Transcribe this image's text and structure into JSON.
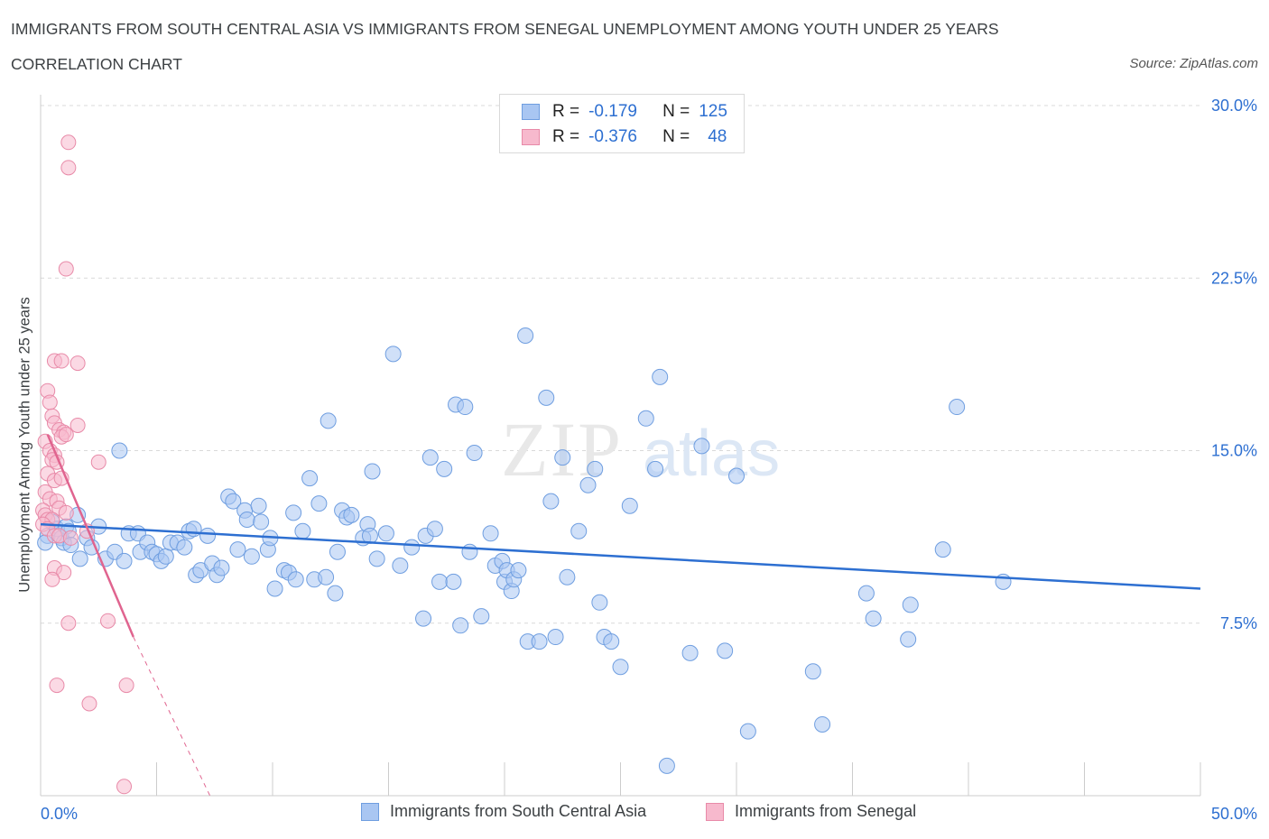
{
  "header": {
    "title": "IMMIGRANTS FROM SOUTH CENTRAL ASIA VS IMMIGRANTS FROM SENEGAL UNEMPLOYMENT AMONG YOUTH UNDER 25 YEARS",
    "subtitle": "CORRELATION CHART",
    "source": "Source: ZipAtlas.com"
  },
  "watermark": {
    "zip": "ZIP",
    "atlas": "atlas"
  },
  "legend": {
    "rows": [
      {
        "r_label": "R =",
        "r_value": "-0.179",
        "n_label": "N =",
        "n_value": "125",
        "color": "#a9c6f2",
        "border": "#6f9ee0"
      },
      {
        "r_label": "R =",
        "r_value": "-0.376",
        "n_label": "N =",
        "n_value": "48",
        "color": "#f7b9cd",
        "border": "#e88aa8"
      }
    ]
  },
  "colors": {
    "blue_fill": "#a9c6f2",
    "blue_stroke": "#6f9ee0",
    "blue_line": "#2d6fd1",
    "pink_fill": "#f7b9cd",
    "pink_stroke": "#e88aa8",
    "pink_line": "#e0648f",
    "axis_label": "#2d6fd1",
    "grid": "#d9d9d9"
  },
  "chart_data": {
    "type": "scatter",
    "title": "IMMIGRANTS FROM SOUTH CENTRAL ASIA VS IMMIGRANTS FROM SENEGAL UNEMPLOYMENT AMONG YOUTH UNDER 25 YEARS",
    "subtitle": "CORRELATION CHART",
    "xlabel": "",
    "ylabel": "Unemployment Among Youth under 25 years",
    "xlim": [
      0,
      50
    ],
    "ylim": [
      0,
      30
    ],
    "x_tick_labels": [
      "0.0%",
      "50.0%"
    ],
    "y_ticks": [
      7.5,
      15,
      22.5,
      30
    ],
    "y_tick_labels": [
      "7.5%",
      "15.0%",
      "22.5%",
      "30.0%"
    ],
    "grid": true,
    "legend_position": "bottom",
    "series": [
      {
        "name": "Immigrants from South Central Asia",
        "r": -0.179,
        "n": 125,
        "trend": {
          "x": [
            0,
            50
          ],
          "y": [
            11.8,
            9.0
          ]
        },
        "points": [
          [
            0.3,
            11.3
          ],
          [
            0.5,
            11.9
          ],
          [
            0.7,
            11.6
          ],
          [
            0.9,
            11.2
          ],
          [
            1.0,
            11.0
          ],
          [
            1.1,
            11.7
          ],
          [
            1.2,
            11.5
          ],
          [
            1.3,
            10.9
          ],
          [
            1.6,
            12.2
          ],
          [
            1.7,
            10.3
          ],
          [
            2.0,
            11.2
          ],
          [
            2.2,
            10.8
          ],
          [
            2.5,
            11.7
          ],
          [
            2.8,
            10.3
          ],
          [
            3.2,
            10.6
          ],
          [
            3.4,
            15.0
          ],
          [
            3.6,
            10.2
          ],
          [
            3.8,
            11.4
          ],
          [
            4.2,
            11.4
          ],
          [
            4.3,
            10.6
          ],
          [
            4.6,
            11.0
          ],
          [
            4.8,
            10.6
          ],
          [
            5.0,
            10.5
          ],
          [
            5.2,
            10.2
          ],
          [
            5.4,
            10.4
          ],
          [
            5.6,
            11.0
          ],
          [
            5.9,
            11.0
          ],
          [
            6.2,
            10.8
          ],
          [
            6.4,
            11.5
          ],
          [
            6.6,
            11.6
          ],
          [
            6.7,
            9.6
          ],
          [
            6.9,
            9.8
          ],
          [
            7.2,
            11.3
          ],
          [
            7.4,
            10.1
          ],
          [
            7.6,
            9.6
          ],
          [
            7.8,
            9.9
          ],
          [
            8.1,
            13.0
          ],
          [
            8.3,
            12.8
          ],
          [
            8.5,
            10.7
          ],
          [
            8.8,
            12.4
          ],
          [
            8.9,
            12.0
          ],
          [
            9.1,
            10.4
          ],
          [
            9.4,
            12.6
          ],
          [
            9.5,
            11.9
          ],
          [
            9.8,
            10.7
          ],
          [
            9.9,
            11.2
          ],
          [
            10.1,
            9.0
          ],
          [
            10.5,
            9.8
          ],
          [
            10.7,
            9.7
          ],
          [
            10.9,
            12.3
          ],
          [
            11.0,
            9.4
          ],
          [
            11.3,
            11.5
          ],
          [
            11.6,
            13.8
          ],
          [
            11.8,
            9.4
          ],
          [
            12.0,
            12.7
          ],
          [
            12.3,
            9.5
          ],
          [
            12.4,
            16.3
          ],
          [
            12.7,
            8.8
          ],
          [
            12.8,
            10.6
          ],
          [
            13.0,
            12.4
          ],
          [
            13.2,
            12.1
          ],
          [
            13.4,
            12.2
          ],
          [
            13.9,
            11.2
          ],
          [
            14.1,
            11.8
          ],
          [
            14.2,
            11.3
          ],
          [
            14.3,
            14.1
          ],
          [
            14.5,
            10.3
          ],
          [
            14.9,
            11.4
          ],
          [
            15.2,
            19.2
          ],
          [
            15.5,
            10.0
          ],
          [
            16.0,
            10.8
          ],
          [
            16.5,
            7.7
          ],
          [
            16.6,
            11.3
          ],
          [
            16.8,
            14.7
          ],
          [
            17.0,
            11.6
          ],
          [
            17.2,
            9.3
          ],
          [
            17.4,
            14.2
          ],
          [
            17.8,
            9.3
          ],
          [
            17.9,
            17.0
          ],
          [
            18.1,
            7.4
          ],
          [
            18.3,
            16.9
          ],
          [
            18.5,
            10.6
          ],
          [
            18.7,
            14.9
          ],
          [
            19.0,
            7.8
          ],
          [
            19.4,
            11.4
          ],
          [
            19.6,
            10.0
          ],
          [
            19.9,
            10.2
          ],
          [
            20.0,
            9.3
          ],
          [
            20.1,
            9.8
          ],
          [
            20.3,
            8.9
          ],
          [
            20.4,
            9.4
          ],
          [
            20.6,
            9.8
          ],
          [
            20.9,
            20.0
          ],
          [
            21.0,
            6.7
          ],
          [
            21.5,
            6.7
          ],
          [
            21.8,
            17.3
          ],
          [
            22.0,
            12.8
          ],
          [
            22.2,
            6.9
          ],
          [
            22.5,
            14.7
          ],
          [
            22.7,
            9.5
          ],
          [
            23.2,
            11.5
          ],
          [
            23.6,
            13.5
          ],
          [
            23.9,
            14.2
          ],
          [
            24.1,
            8.4
          ],
          [
            24.3,
            6.9
          ],
          [
            24.6,
            6.7
          ],
          [
            25.0,
            5.6
          ],
          [
            25.4,
            12.6
          ],
          [
            26.1,
            16.4
          ],
          [
            26.5,
            14.2
          ],
          [
            26.7,
            18.2
          ],
          [
            27.0,
            1.3
          ],
          [
            28.0,
            6.2
          ],
          [
            28.5,
            15.2
          ],
          [
            29.5,
            6.3
          ],
          [
            30.0,
            13.9
          ],
          [
            30.5,
            2.8
          ],
          [
            33.3,
            5.4
          ],
          [
            33.7,
            3.1
          ],
          [
            35.6,
            8.8
          ],
          [
            35.9,
            7.7
          ],
          [
            37.4,
            6.8
          ],
          [
            37.5,
            8.3
          ],
          [
            38.9,
            10.7
          ],
          [
            39.5,
            16.9
          ],
          [
            41.5,
            9.3
          ],
          [
            0.2,
            11.0
          ]
        ]
      },
      {
        "name": "Immigrants from Senegal",
        "r": -0.376,
        "n": 48,
        "trend": {
          "x": [
            0.3,
            4.0
          ],
          "y": [
            15.7,
            6.9
          ]
        },
        "trend_dashed": {
          "x": [
            4.0,
            7.3
          ],
          "y": [
            6.9,
            0
          ]
        },
        "points": [
          [
            1.2,
            28.4
          ],
          [
            1.2,
            27.3
          ],
          [
            1.1,
            22.9
          ],
          [
            0.6,
            18.9
          ],
          [
            0.9,
            18.9
          ],
          [
            1.6,
            18.8
          ],
          [
            0.3,
            17.6
          ],
          [
            0.4,
            17.1
          ],
          [
            0.5,
            16.5
          ],
          [
            0.6,
            16.2
          ],
          [
            0.8,
            15.9
          ],
          [
            1.0,
            15.8
          ],
          [
            0.9,
            15.6
          ],
          [
            1.1,
            15.7
          ],
          [
            1.6,
            16.1
          ],
          [
            0.2,
            15.4
          ],
          [
            0.4,
            15.0
          ],
          [
            0.6,
            14.8
          ],
          [
            0.5,
            14.6
          ],
          [
            0.7,
            14.5
          ],
          [
            0.3,
            14.0
          ],
          [
            0.6,
            13.7
          ],
          [
            0.9,
            13.8
          ],
          [
            2.5,
            14.5
          ],
          [
            0.2,
            13.2
          ],
          [
            0.4,
            12.9
          ],
          [
            0.7,
            12.8
          ],
          [
            0.8,
            12.5
          ],
          [
            0.1,
            12.4
          ],
          [
            0.2,
            12.2
          ],
          [
            0.3,
            12.0
          ],
          [
            0.5,
            12.0
          ],
          [
            0.1,
            11.8
          ],
          [
            0.3,
            11.6
          ],
          [
            0.6,
            11.3
          ],
          [
            0.8,
            11.3
          ],
          [
            1.1,
            12.3
          ],
          [
            1.3,
            11.2
          ],
          [
            2.0,
            11.5
          ],
          [
            0.6,
            9.9
          ],
          [
            1.0,
            9.7
          ],
          [
            0.5,
            9.4
          ],
          [
            1.2,
            7.5
          ],
          [
            2.9,
            7.6
          ],
          [
            0.7,
            4.8
          ],
          [
            2.1,
            4.0
          ],
          [
            3.7,
            4.8
          ],
          [
            3.6,
            0.4
          ]
        ]
      }
    ]
  },
  "bottom_legend": [
    {
      "label": "Immigrants from South Central Asia"
    },
    {
      "label": "Immigrants from Senegal"
    }
  ]
}
